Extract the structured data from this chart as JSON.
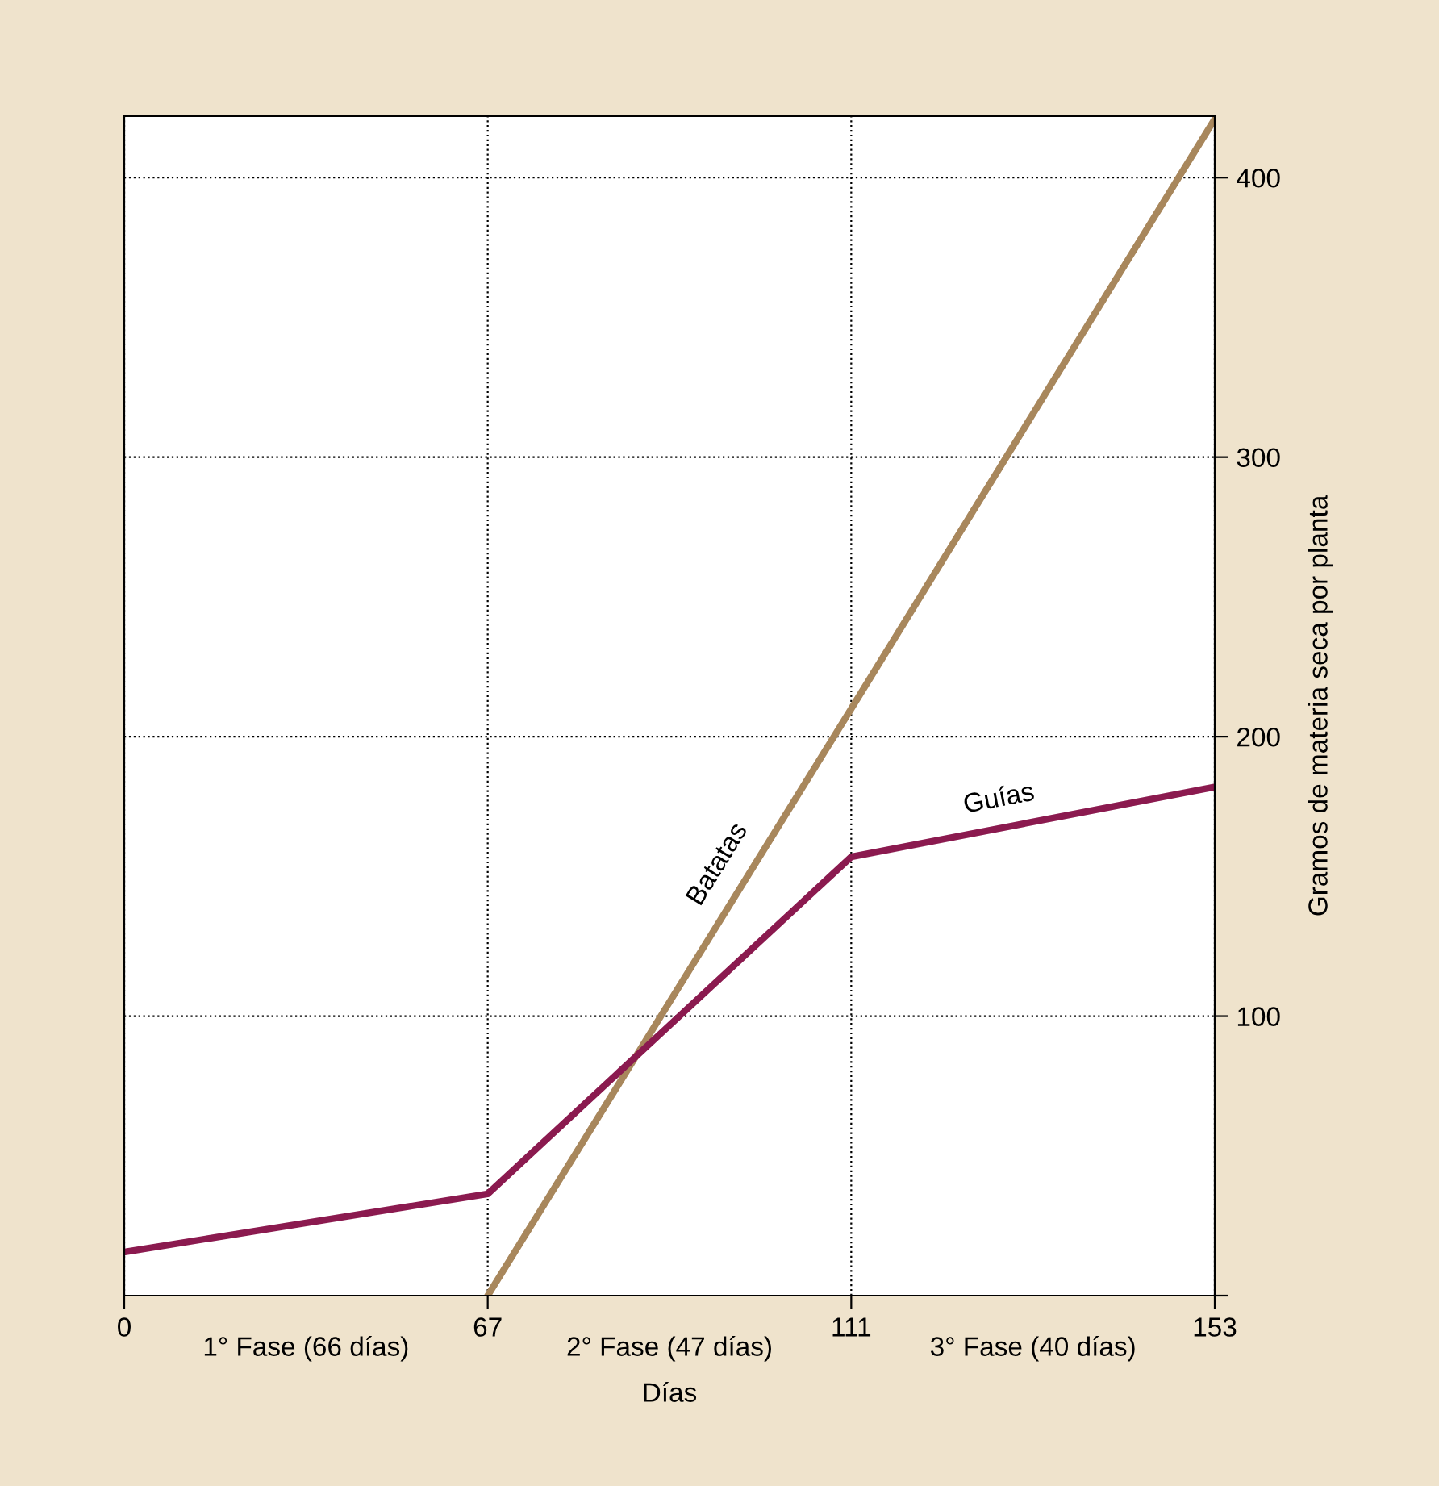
{
  "chart_data": {
    "type": "line",
    "xlabel": "Días",
    "ylabel": "Gramos de materia seca por planta",
    "categories": [
      "0",
      "67",
      "111",
      "153"
    ],
    "series": [
      {
        "name": "Batatas",
        "color": "#a8875c",
        "values": [
          null,
          0,
          210,
          421
        ]
      },
      {
        "name": "Guías",
        "color": "#8b1a4f",
        "values": [
          15.6,
          36.4,
          157,
          182
        ]
      }
    ],
    "annotations": [
      "1° Fase (66 días)",
      "2° Fase (47 días)",
      "3° Fase (40 días)"
    ],
    "ylim": [
      0,
      422
    ],
    "yticks": [
      {
        "value": 0,
        "label": null
      },
      100,
      200,
      300,
      400
    ],
    "grid": true,
    "legend": false,
    "marker": "none",
    "line_style": "solid"
  }
}
